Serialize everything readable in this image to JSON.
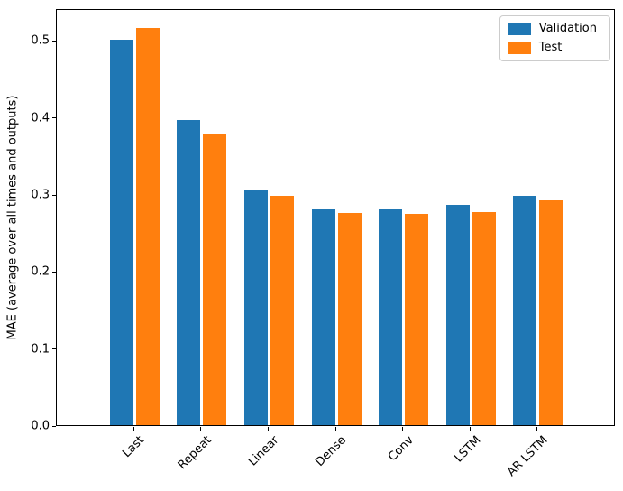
{
  "chart_data": {
    "type": "bar",
    "title": "",
    "xlabel": "",
    "ylabel": "MAE (average over all times and outputs)",
    "categories": [
      "Last",
      "Repeat",
      "Linear",
      "Dense",
      "Conv",
      "LSTM",
      "AR LSTM"
    ],
    "series": [
      {
        "name": "Validation",
        "color": "#1f77b4",
        "values": [
          0.501,
          0.396,
          0.306,
          0.28,
          0.28,
          0.286,
          0.298
        ]
      },
      {
        "name": "Test",
        "color": "#ff7f0e",
        "values": [
          0.516,
          0.377,
          0.298,
          0.276,
          0.274,
          0.277,
          0.292
        ]
      }
    ],
    "ylim": [
      0,
      0.5415
    ],
    "yticks": [
      0.0,
      0.1,
      0.2,
      0.3,
      0.4,
      0.5
    ],
    "ytick_labels": [
      "0.0",
      "0.1",
      "0.2",
      "0.3",
      "0.4",
      "0.5"
    ],
    "xtick_rotation_deg": 45,
    "grid": false,
    "legend": {
      "position": "upper right",
      "entries": [
        "Validation",
        "Test"
      ]
    }
  }
}
